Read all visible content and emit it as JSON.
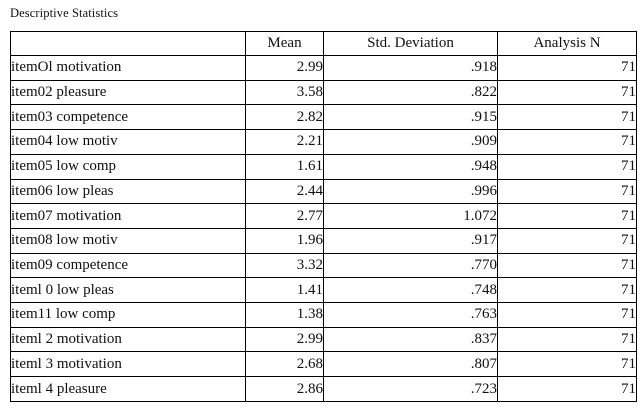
{
  "title": "Descriptive Statistics",
  "table": {
    "columns": [
      "",
      "Mean",
      "Std. Deviation",
      "Analysis N"
    ],
    "rows": [
      {
        "label": "itemOl motivation",
        "mean": "2.99",
        "sd": ".918",
        "n": "71"
      },
      {
        "label": "item02 pleasure",
        "mean": "3.58",
        "sd": ".822",
        "n": "71"
      },
      {
        "label": "item03 competence",
        "mean": "2.82",
        "sd": ".915",
        "n": "71"
      },
      {
        "label": "item04 low motiv",
        "mean": "2.21",
        "sd": ".909",
        "n": "71"
      },
      {
        "label": "item05 low comp",
        "mean": "1.61",
        "sd": ".948",
        "n": "71"
      },
      {
        "label": "item06 low pleas",
        "mean": "2.44",
        "sd": ".996",
        "n": "71"
      },
      {
        "label": "item07 motivation",
        "mean": "2.77",
        "sd": "1.072",
        "n": "71"
      },
      {
        "label": "item08 low motiv",
        "mean": "1.96",
        "sd": ".917",
        "n": "71"
      },
      {
        "label": "item09 competence",
        "mean": "3.32",
        "sd": ".770",
        "n": "71"
      },
      {
        "label": "iteml 0 low pleas",
        "mean": "1.41",
        "sd": ".748",
        "n": "71"
      },
      {
        "label": "item11 low comp",
        "mean": "1.38",
        "sd": ".763",
        "n": "71"
      },
      {
        "label": "iteml 2 motivation",
        "mean": "2.99",
        "sd": ".837",
        "n": "71"
      },
      {
        "label": "iteml 3 motivation",
        "mean": "2.68",
        "sd": ".807",
        "n": "71"
      },
      {
        "label": "iteml 4 pleasure",
        "mean": "2.86",
        "sd": ".723",
        "n": "71"
      }
    ]
  }
}
